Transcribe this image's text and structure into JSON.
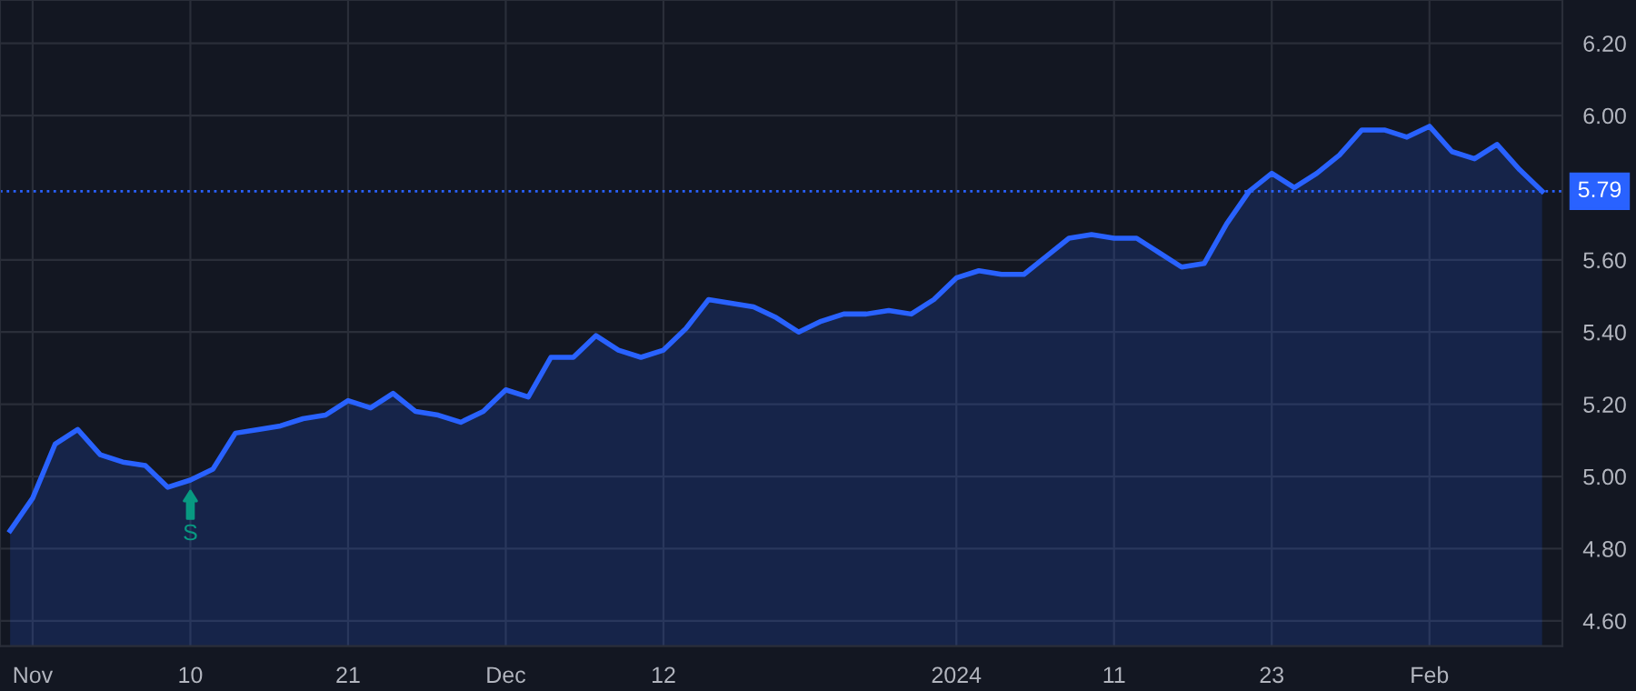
{
  "chart_data": {
    "type": "area",
    "categories": [
      null,
      "Nov",
      null,
      null,
      null,
      null,
      null,
      null,
      "10",
      null,
      null,
      null,
      null,
      null,
      null,
      "21",
      null,
      null,
      null,
      null,
      null,
      null,
      "Dec",
      null,
      null,
      null,
      null,
      null,
      null,
      "12",
      null,
      null,
      null,
      null,
      null,
      null,
      null,
      null,
      null,
      null,
      null,
      null,
      "2024",
      null,
      null,
      null,
      null,
      null,
      null,
      "11",
      null,
      null,
      null,
      null,
      null,
      null,
      "23",
      null,
      null,
      null,
      null,
      null,
      null,
      "Feb",
      null,
      null,
      null,
      null,
      null
    ],
    "series": [
      {
        "color": "#2962ff",
        "values": [
          4.85,
          4.94,
          5.09,
          5.13,
          5.06,
          5.04,
          5.03,
          4.97,
          4.99,
          5.02,
          5.12,
          5.13,
          5.14,
          5.16,
          5.17,
          5.21,
          5.19,
          5.23,
          5.18,
          5.17,
          5.15,
          5.18,
          5.24,
          5.22,
          5.33,
          5.33,
          5.39,
          5.35,
          5.33,
          5.35,
          5.41,
          5.49,
          5.48,
          5.47,
          5.44,
          5.4,
          5.43,
          5.45,
          5.45,
          5.46,
          5.45,
          5.49,
          5.55,
          5.57,
          5.56,
          5.56,
          5.61,
          5.66,
          5.67,
          5.66,
          5.66,
          5.62,
          5.58,
          5.59,
          5.7,
          5.79,
          5.84,
          5.8,
          5.84,
          5.89,
          5.96,
          5.96,
          5.94,
          5.97,
          5.9,
          5.88,
          5.92,
          5.85,
          5.79
        ]
      }
    ],
    "ylim": [
      4.53,
      6.32
    ],
    "yticks": [
      {
        "value": 4.6,
        "label": "4.60"
      },
      {
        "value": 4.8,
        "label": "4.80"
      },
      {
        "value": 5.0,
        "label": "5.00"
      },
      {
        "value": 5.2,
        "label": "5.20"
      },
      {
        "value": 5.4,
        "label": "5.40"
      },
      {
        "value": 5.6,
        "label": "5.60"
      },
      {
        "value": 6.0,
        "label": "6.00"
      },
      {
        "value": 6.2,
        "label": "6.20"
      }
    ],
    "ref_lines": [
      {
        "axis": "y",
        "value": 5.79,
        "label": "5.79",
        "color": "#2962ff",
        "line_style": "dotted"
      }
    ],
    "annotations": [
      {
        "text": "S",
        "x": "10",
        "y": 4.96
      }
    ],
    "grid": true,
    "line_style": "solid",
    "marker": "none"
  }
}
